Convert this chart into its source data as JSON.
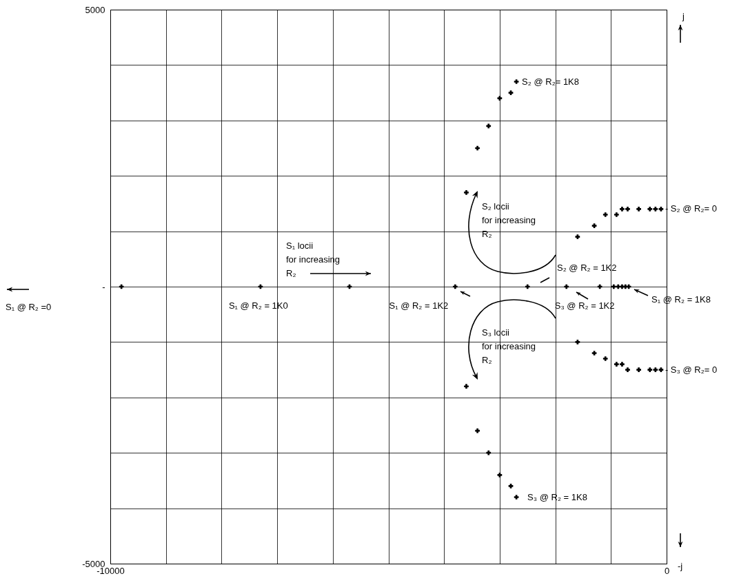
{
  "chart_data": {
    "type": "scatter",
    "xlim": [
      -10000,
      0
    ],
    "ylim": [
      -5000,
      5000
    ],
    "xticks": [
      {
        "value": -10000,
        "label": "-10000"
      },
      {
        "value": -9000,
        "label": null
      },
      {
        "value": -8000,
        "label": null
      },
      {
        "value": -7000,
        "label": null
      },
      {
        "value": -6000,
        "label": null
      },
      {
        "value": -5000,
        "label": null
      },
      {
        "value": -4000,
        "label": null
      },
      {
        "value": -3000,
        "label": null
      },
      {
        "value": -2000,
        "label": null
      },
      {
        "value": -1000,
        "label": null
      },
      0
    ],
    "yticks": [
      {
        "value": -5000,
        "label": "-5000"
      },
      {
        "value": -4000,
        "label": null
      },
      {
        "value": -3000,
        "label": null
      },
      {
        "value": -2000,
        "label": null
      },
      {
        "value": -1000,
        "label": null
      },
      {
        "value": 0,
        "label": "-"
      },
      {
        "value": 1000,
        "label": null
      },
      {
        "value": 2000,
        "label": null
      },
      {
        "value": 3000,
        "label": null
      },
      {
        "value": 4000,
        "label": null
      },
      5000
    ],
    "grid": true,
    "marker": "cross",
    "series": [
      {
        "color": "#000000",
        "x": [
          -9800,
          -7300,
          -5700,
          -3800,
          -1200,
          -950,
          -870,
          -800,
          -740,
          -680
        ],
        "values": [
          0,
          0,
          0,
          0,
          0,
          0,
          0,
          0,
          0,
          0
        ]
      },
      {
        "color": "#000000",
        "x": [
          -2700,
          -2800,
          -3000,
          -3200,
          -3400,
          -3600,
          -2500,
          -1600,
          -1300,
          -1100,
          -900,
          -800,
          -700,
          -500,
          -300,
          -200,
          -100
        ],
        "values": [
          3700,
          3500,
          3400,
          2900,
          2500,
          1700,
          0,
          900,
          1100,
          1300,
          1300,
          1400,
          1400,
          1400,
          1400,
          1400,
          1400
        ]
      },
      {
        "color": "#000000",
        "x": [
          -2700,
          -2800,
          -3000,
          -3200,
          -3400,
          -3600,
          -1800,
          -1600,
          -1300,
          -1100,
          -900,
          -800,
          -700,
          -500,
          -300,
          -200,
          -100
        ],
        "values": [
          -3800,
          -3600,
          -3400,
          -3000,
          -2600,
          -1800,
          0,
          -1000,
          -1200,
          -1300,
          -1400,
          -1400,
          -1500,
          -1500,
          -1500,
          -1500,
          -1500
        ]
      }
    ],
    "annotations": [
      {
        "text": "S₂  @ R₂= 1K8",
        "x": -2700,
        "y": 3700
      },
      "S₂  locii\nfor  increasing\nR₂",
      {
        "text": "- S₂  @ R₂= 0",
        "x": -100,
        "y": 1400
      },
      "S₁  locii\nfor  increasing\nR₂",
      "S₂ @ R₂ = 1K2",
      {
        "text": "S₁ @ R₂ = 1K0",
        "x": -7300,
        "y": 0
      },
      {
        "text": "S₁ @ R₂ = 1K2",
        "x": -3800,
        "y": 0
      },
      {
        "text": "S₃ @ R₂ = 1K2",
        "x": -1800,
        "y": 0
      },
      {
        "text": "S₁ @ R₂ = 1K8",
        "x": -680,
        "y": 0
      },
      "S₃  locii\nfor  increasing\nR₂",
      {
        "text": "- S₃  @ R₂= 0",
        "x": -100,
        "y": -1500
      },
      {
        "text": "S₃ @ R₂ = 1K8",
        "x": -2700,
        "y": -3800
      },
      "S₁ @ R₂ =0",
      "j",
      "-j"
    ]
  }
}
